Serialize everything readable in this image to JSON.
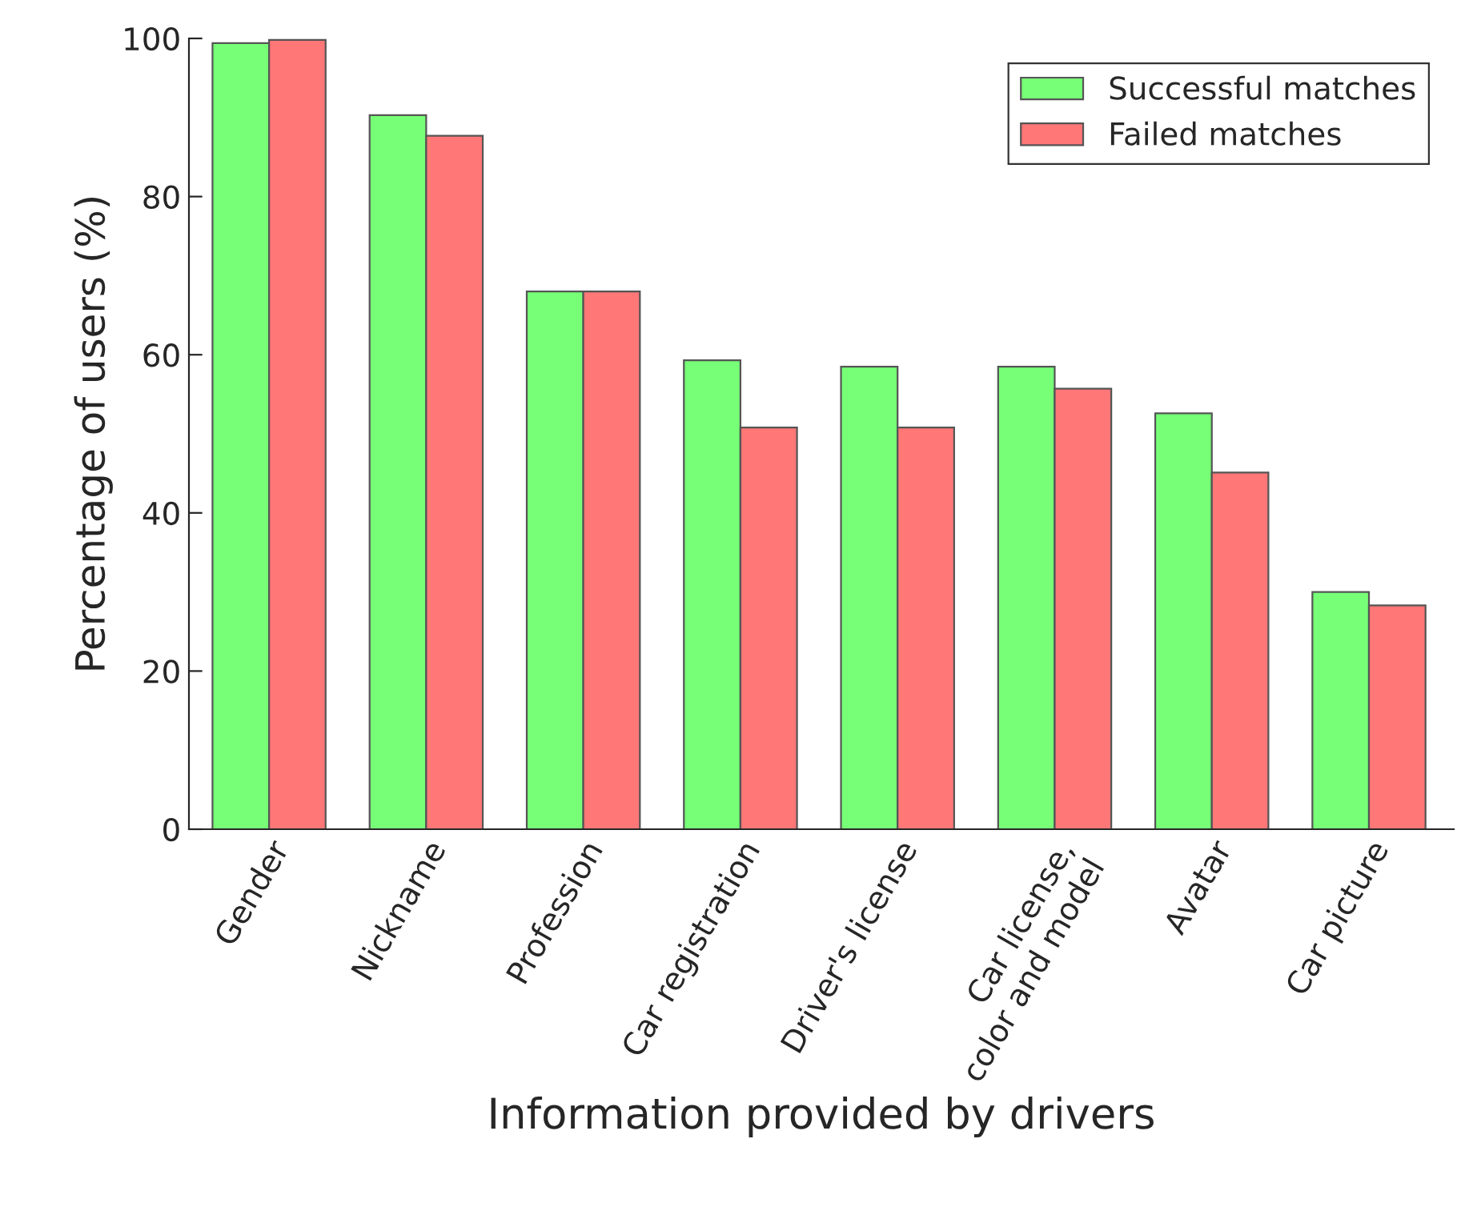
{
  "chart_data": {
    "type": "bar",
    "xlabel": "Information provided by drivers",
    "ylabel": "Percentage of users (%)",
    "categories": [
      "Gender",
      "Nickname",
      "Profession",
      "Car registration",
      "Driver's license",
      "Car license,\ncolor and model",
      "Avatar",
      "Car picture"
    ],
    "series": [
      {
        "name": "Successful matches",
        "color": "#77ff77",
        "values": [
          99.4,
          90.3,
          68.0,
          59.3,
          58.5,
          58.5,
          52.6,
          30.0
        ]
      },
      {
        "name": "Failed matches",
        "color": "#ff7777",
        "values": [
          99.8,
          87.7,
          68.0,
          50.8,
          50.8,
          55.7,
          45.1,
          28.3
        ]
      }
    ],
    "ylim": [
      0,
      100
    ],
    "yticks": [
      0,
      20,
      40,
      60,
      80,
      100
    ],
    "grid": false,
    "legend": "top right"
  }
}
